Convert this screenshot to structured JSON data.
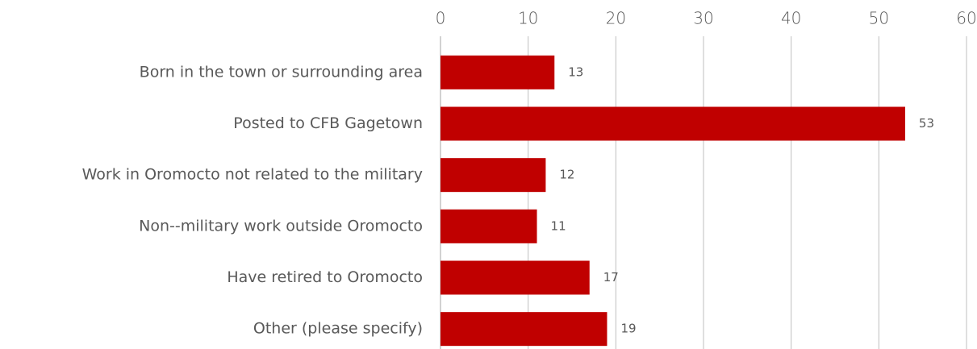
{
  "chart_data": {
    "type": "bar",
    "orientation": "horizontal",
    "categories": [
      "Born in the town or surrounding area",
      "Posted to CFB Gagetown",
      "Work in Oromocto not related to the military",
      "Non--military work outside Oromocto",
      "Have retired to Oromocto",
      "Other (please specify)"
    ],
    "values": [
      13,
      53,
      12,
      11,
      17,
      19
    ],
    "color": "#c00000",
    "xlim": [
      0,
      60
    ],
    "xticks": [
      0,
      10,
      20,
      30,
      40,
      50,
      60
    ],
    "grid": true
  }
}
